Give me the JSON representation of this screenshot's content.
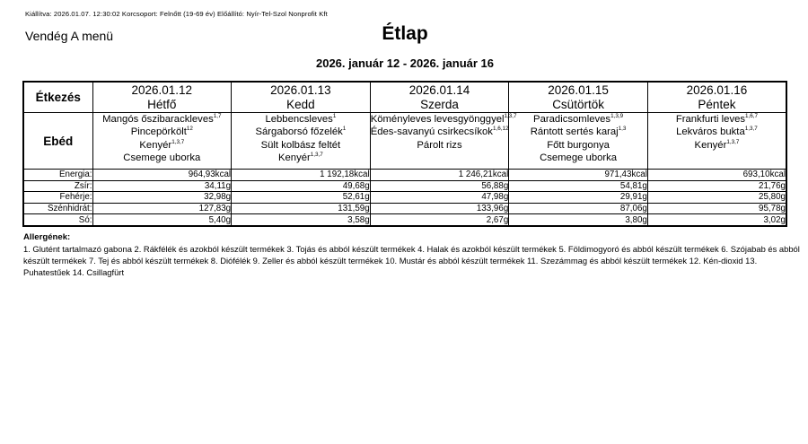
{
  "meta_line": "Kiállítva: 2026.01.07. 12:30:02 Korcsoport: Felnőtt (19-69 év) Előállító: Nyír-Tel-Szol Nonprofit Kft",
  "menu_name": "Vendég A menü",
  "title": "Étlap",
  "date_range": "2026. január 12 - 2026. január 16",
  "table": {
    "meal_column_header": "Étkezés",
    "meal_label": "Ebéd",
    "days": [
      {
        "date": "2026.01.12",
        "weekday": "Hétfő",
        "items": [
          {
            "name": "Mangós őszibarackleves",
            "sup": "1,7"
          },
          {
            "name": "Pincepörkölt",
            "sup": "12"
          },
          {
            "name": "Kenyér",
            "sup": "1,3,7"
          },
          {
            "name": "Csemege uborka",
            "sup": ""
          }
        ]
      },
      {
        "date": "2026.01.13",
        "weekday": "Kedd",
        "items": [
          {
            "name": "Lebbencsleves",
            "sup": "1"
          },
          {
            "name": "Sárgaborsó főzelék",
            "sup": "1"
          },
          {
            "name": "Sült kolbász feltét",
            "sup": ""
          },
          {
            "name": "Kenyér",
            "sup": "1,3,7"
          }
        ]
      },
      {
        "date": "2026.01.14",
        "weekday": "Szerda",
        "items": [
          {
            "name": "Köményleves levesgyönggyel",
            "sup": "1,3,7"
          },
          {
            "name": "Édes-savanyú csirkecsíkok",
            "sup": "1,6,12"
          },
          {
            "name": "Párolt rizs",
            "sup": ""
          }
        ]
      },
      {
        "date": "2026.01.15",
        "weekday": "Csütörtök",
        "items": [
          {
            "name": "Paradicsomleves",
            "sup": "1,3,9"
          },
          {
            "name": "Rántott sertés karaj",
            "sup": "1,3"
          },
          {
            "name": "Főtt burgonya",
            "sup": ""
          },
          {
            "name": "Csemege uborka",
            "sup": ""
          }
        ]
      },
      {
        "date": "2026.01.16",
        "weekday": "Péntek",
        "items": [
          {
            "name": "Frankfurti leves",
            "sup": "1,6,7"
          },
          {
            "name": "Lekváros bukta",
            "sup": "1,3,7"
          },
          {
            "name": "Kenyér",
            "sup": "1,3,7"
          }
        ]
      }
    ],
    "nutrition": [
      {
        "label": "Energia:",
        "values": [
          "964,93kcal",
          "1 192,18kcal",
          "1 246,21kcal",
          "971,43kcal",
          "693,10kcal"
        ]
      },
      {
        "label": "Zsír:",
        "values": [
          "34,11g",
          "49,68g",
          "56,88g",
          "54,81g",
          "21,76g"
        ]
      },
      {
        "label": "Fehérje:",
        "values": [
          "32,98g",
          "52,61g",
          "47,98g",
          "29,91g",
          "25,80g"
        ]
      },
      {
        "label": "Szénhidrát:",
        "values": [
          "127,83g",
          "131,59g",
          "133,96g",
          "87,06g",
          "95,78g"
        ]
      },
      {
        "label": "Só:",
        "values": [
          "5,40g",
          "3,58g",
          "2,67g",
          "3,80g",
          "3,02g"
        ]
      }
    ]
  },
  "allergens": {
    "title": "Allergének:",
    "text": "1. Glutént tartalmazó gabona 2. Rákfélék és azokból készült termékek 3. Tojás és abból készült termékek 4. Halak és azokból készült termékek 5. Földimogyoró és abból készült termékek 6. Szójabab és abból készült termékek 7. Tej és abból készült termékek 8. Diófélék 9. Zeller és abból készült termékek 10. Mustár és abból készült termékek 11. Szezámmag és abból készült termékek 12. Kén-dioxid 13. Puhatestűek 14. Csillagfürt"
  }
}
